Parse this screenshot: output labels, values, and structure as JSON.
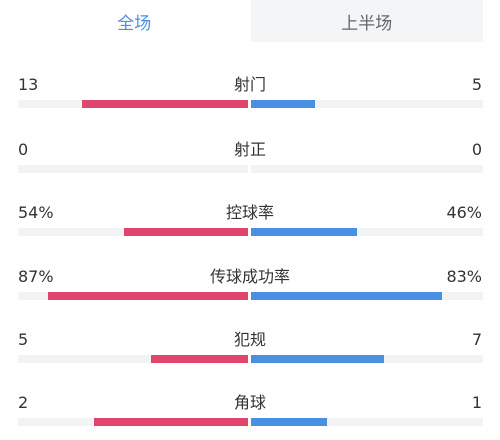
{
  "tabs": [
    {
      "label": "全场",
      "active": true
    },
    {
      "label": "上半场",
      "active": false
    }
  ],
  "colors": {
    "home": "#e0456e",
    "away": "#4a90e2",
    "tab_active": "#4a90e2"
  },
  "stats": [
    {
      "label": "射门",
      "home": "13",
      "away": "5",
      "home_share": 0.72,
      "away_share": 0.28
    },
    {
      "label": "射正",
      "home": "0",
      "away": "0",
      "home_share": 0.0,
      "away_share": 0.0
    },
    {
      "label": "控球率",
      "home": "54%",
      "away": "46%",
      "home_share": 0.54,
      "away_share": 0.46
    },
    {
      "label": "传球成功率",
      "home": "87%",
      "away": "83%",
      "home_share": 0.87,
      "away_share": 0.83
    },
    {
      "label": "犯规",
      "home": "5",
      "away": "7",
      "home_share": 0.42,
      "away_share": 0.58
    },
    {
      "label": "角球",
      "home": "2",
      "away": "1",
      "home_share": 0.67,
      "away_share": 0.33
    }
  ]
}
